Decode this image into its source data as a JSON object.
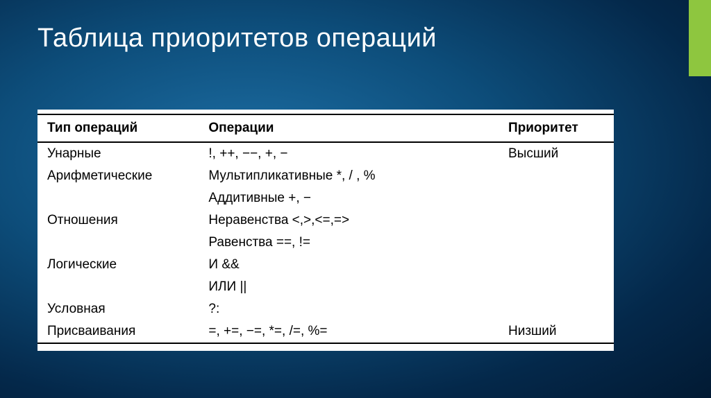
{
  "slide": {
    "title": "Таблица приоритетов операций",
    "background_gradient": [
      "#1d6fa5",
      "#0d4d7a",
      "#04284a",
      "#021a33"
    ],
    "accent_color": "#8ec63f",
    "title_color": "#ffffff",
    "title_fontsize": 38
  },
  "table": {
    "background_color": "#ffffff",
    "border_color": "#000000",
    "text_color": "#000000",
    "header_fontsize": 19,
    "cell_fontsize": 19,
    "columns": [
      {
        "key": "type",
        "label": "Тип операций",
        "width_pct": 28
      },
      {
        "key": "ops",
        "label": "Операции",
        "width_pct": 52
      },
      {
        "key": "priority",
        "label": "Приоритет",
        "width_pct": 20
      }
    ],
    "rows": [
      {
        "type": "Унарные",
        "ops": "!, ++, −−, +, −",
        "priority": "Высший"
      },
      {
        "type": "Арифметические",
        "ops": "Мультипликативные *, / , %",
        "priority": ""
      },
      {
        "type": "",
        "ops": "Аддитивные +, −",
        "priority": ""
      },
      {
        "type": "Отношения",
        "ops": "Неравенства <,>,<=,=>",
        "priority": ""
      },
      {
        "type": "",
        "ops": "Равенства ==, !=",
        "priority": ""
      },
      {
        "type": "Логические",
        "ops": "И &&",
        "priority": ""
      },
      {
        "type": "",
        "ops": "ИЛИ ||",
        "priority": ""
      },
      {
        "type": "Условная",
        "ops": "?:",
        "priority": ""
      },
      {
        "type": "Присваивания",
        "ops": "=, +=, −=, *=, /=, %=",
        "priority": "Низший"
      }
    ]
  }
}
